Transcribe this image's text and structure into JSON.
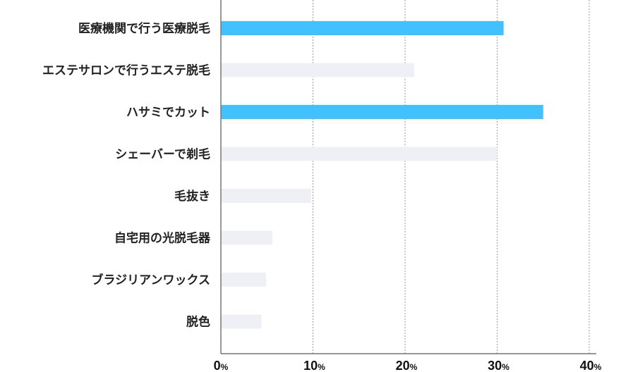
{
  "chart_data": {
    "type": "bar",
    "orientation": "horizontal",
    "categories": [
      "医療機関で行う医療脱毛",
      "エステサロンで行うエステ脱毛",
      "ハサミでカット",
      "シェーバーで剃毛",
      "毛抜き",
      "自宅用の光脱毛器",
      "ブラジリアンワックス",
      "脱色"
    ],
    "values": [
      30.7,
      21.0,
      35.0,
      30.0,
      9.8,
      5.6,
      4.9,
      4.4
    ],
    "highlighted": [
      true,
      false,
      true,
      false,
      false,
      false,
      false,
      false
    ],
    "xlim": [
      0,
      40
    ],
    "xticks": [
      0,
      10,
      20,
      30,
      40
    ],
    "tick_suffix": "%",
    "grid": "vertical dashed",
    "colors": {
      "highlight": "#41C2FF",
      "normal": "#EFF0F5",
      "grid": "#999999",
      "axis": "#777777"
    }
  }
}
